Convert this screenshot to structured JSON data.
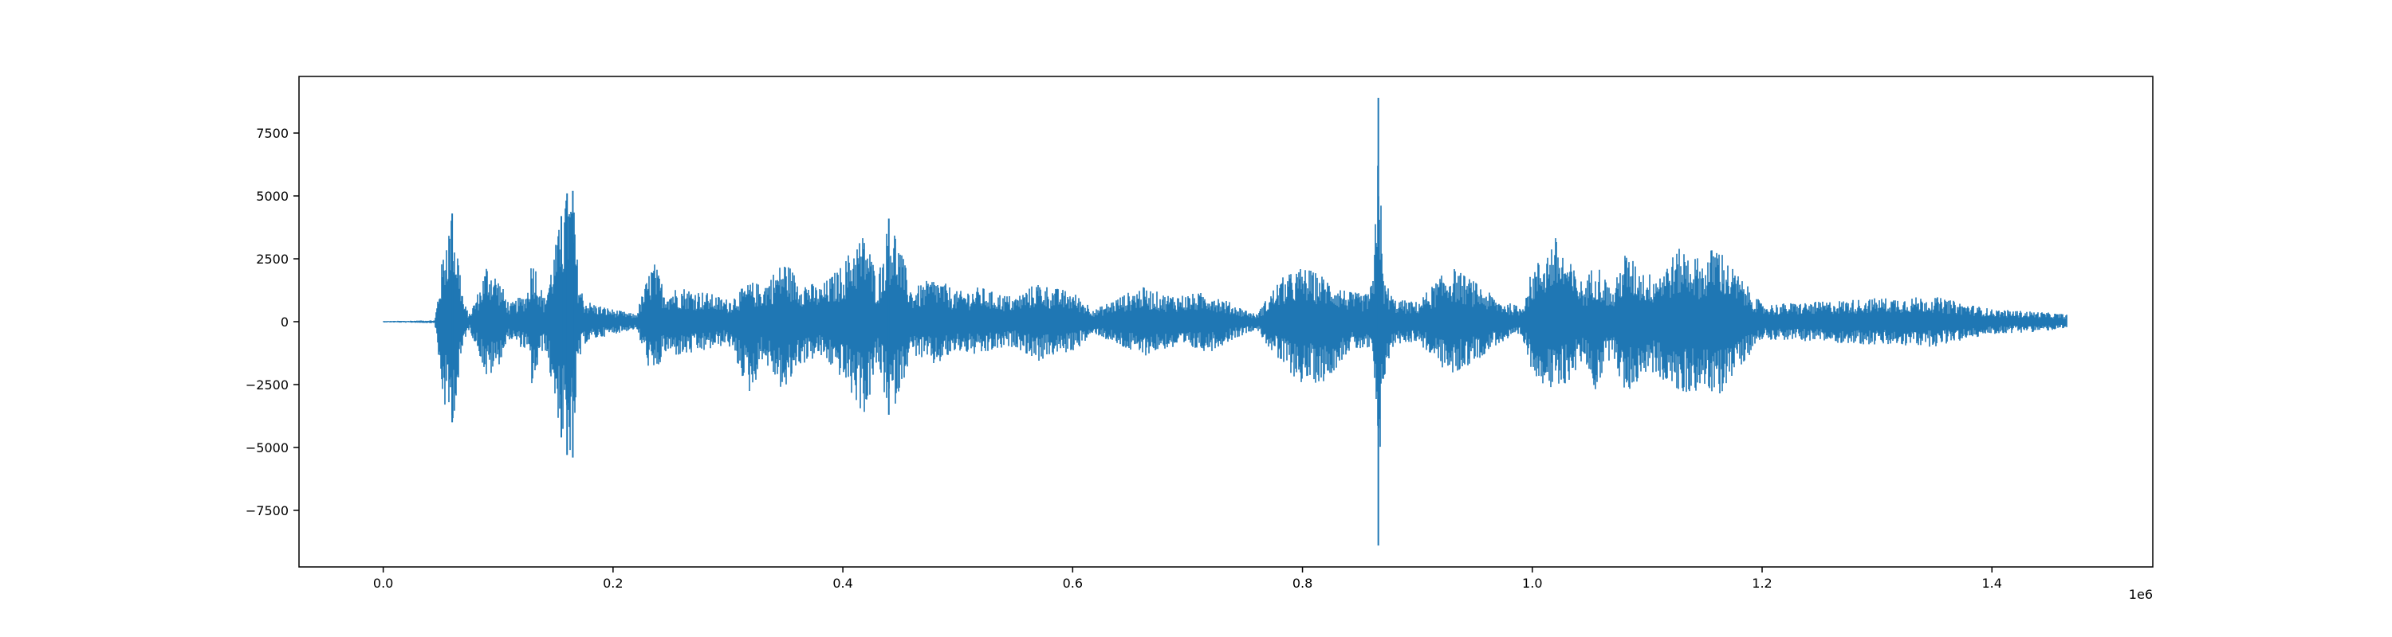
{
  "chart_data": {
    "type": "line",
    "title": "",
    "xlabel": "",
    "ylabel": "",
    "x_offset_label": "1e6",
    "xlim": [
      -0.0733,
      1.54
    ],
    "ylim": [
      -9750,
      9750
    ],
    "x_scale": 1000000,
    "x_ticks": [
      0.0,
      0.2,
      0.4,
      0.6,
      0.8,
      1.0,
      1.2,
      1.4
    ],
    "x_tick_labels": [
      "0.0",
      "0.2",
      "0.4",
      "0.6",
      "0.8",
      "1.0",
      "1.2",
      "1.4"
    ],
    "y_ticks": [
      -7500,
      -5000,
      -2500,
      0,
      2500,
      5000,
      7500
    ],
    "y_tick_labels": [
      "−7500",
      "−5000",
      "−2500",
      "0",
      "2500",
      "5000",
      "7500"
    ],
    "grid": false,
    "line_color": "#1f77b4",
    "series": [
      {
        "x": [
          0.0,
          0.02,
          0.045,
          0.05,
          0.055,
          0.06,
          0.065,
          0.07,
          0.075,
          0.085,
          0.09,
          0.1,
          0.11,
          0.125,
          0.13,
          0.14,
          0.155,
          0.16,
          0.165,
          0.17,
          0.175,
          0.185,
          0.2,
          0.22,
          0.235,
          0.245,
          0.26,
          0.28,
          0.3,
          0.32,
          0.33,
          0.35,
          0.36,
          0.38,
          0.4,
          0.41,
          0.42,
          0.43,
          0.44,
          0.445,
          0.46,
          0.48,
          0.5,
          0.52,
          0.53,
          0.55,
          0.57,
          0.58,
          0.6,
          0.62,
          0.64,
          0.66,
          0.68,
          0.7,
          0.72,
          0.74,
          0.76,
          0.78,
          0.8,
          0.82,
          0.84,
          0.855,
          0.862,
          0.866,
          0.87,
          0.88,
          0.9,
          0.92,
          0.93,
          0.95,
          0.97,
          0.99,
          1.0,
          1.02,
          1.035,
          1.045,
          1.055,
          1.07,
          1.08,
          1.1,
          1.11,
          1.13,
          1.15,
          1.16,
          1.17,
          1.2,
          1.25,
          1.3,
          1.35,
          1.4,
          1.44,
          1.465
        ],
        "amp_max": [
          30,
          40,
          60,
          2000,
          3800,
          4300,
          3000,
          800,
          300,
          1500,
          2400,
          1800,
          700,
          1200,
          2800,
          900,
          4200,
          5100,
          5200,
          1800,
          900,
          700,
          500,
          300,
          2500,
          1300,
          1400,
          1200,
          900,
          1600,
          1500,
          2500,
          1800,
          1400,
          2300,
          3200,
          3600,
          1700,
          4100,
          3800,
          1300,
          1800,
          1200,
          1400,
          1200,
          1000,
          1600,
          1400,
          1200,
          500,
          1000,
          1400,
          1100,
          1100,
          1200,
          700,
          300,
          1700,
          2200,
          1800,
          1200,
          1100,
          1700,
          8900,
          1800,
          900,
          800,
          1800,
          2200,
          1600,
          900,
          600,
          2100,
          3400,
          2200,
          1500,
          2500,
          1200,
          2800,
          1900,
          2100,
          3000,
          2400,
          3300,
          2400,
          700,
          800,
          950,
          1000,
          500,
          400,
          300
        ],
        "amp_min": [
          -30,
          -40,
          -60,
          -2600,
          -3900,
          -4000,
          -3000,
          -800,
          -300,
          -1500,
          -2400,
          -1800,
          -700,
          -1200,
          -2800,
          -900,
          -4600,
          -5300,
          -5400,
          -1800,
          -900,
          -700,
          -500,
          -300,
          -2400,
          -1300,
          -1400,
          -1200,
          -900,
          -3000,
          -1500,
          -3000,
          -1800,
          -1400,
          -2300,
          -3200,
          -3800,
          -1700,
          -3700,
          -3400,
          -1300,
          -1800,
          -1200,
          -1400,
          -1200,
          -1000,
          -1600,
          -1400,
          -1200,
          -500,
          -1000,
          -1400,
          -1100,
          -1100,
          -1200,
          -700,
          -300,
          -1700,
          -2500,
          -2400,
          -1200,
          -1100,
          -1700,
          -8900,
          -2500,
          -900,
          -800,
          -1800,
          -2200,
          -1600,
          -900,
          -600,
          -2000,
          -3000,
          -2200,
          -1500,
          -2800,
          -1200,
          -3000,
          -2000,
          -2200,
          -3000,
          -2600,
          -3300,
          -2400,
          -700,
          -800,
          -950,
          -1000,
          -500,
          -400,
          -300
        ]
      }
    ]
  }
}
